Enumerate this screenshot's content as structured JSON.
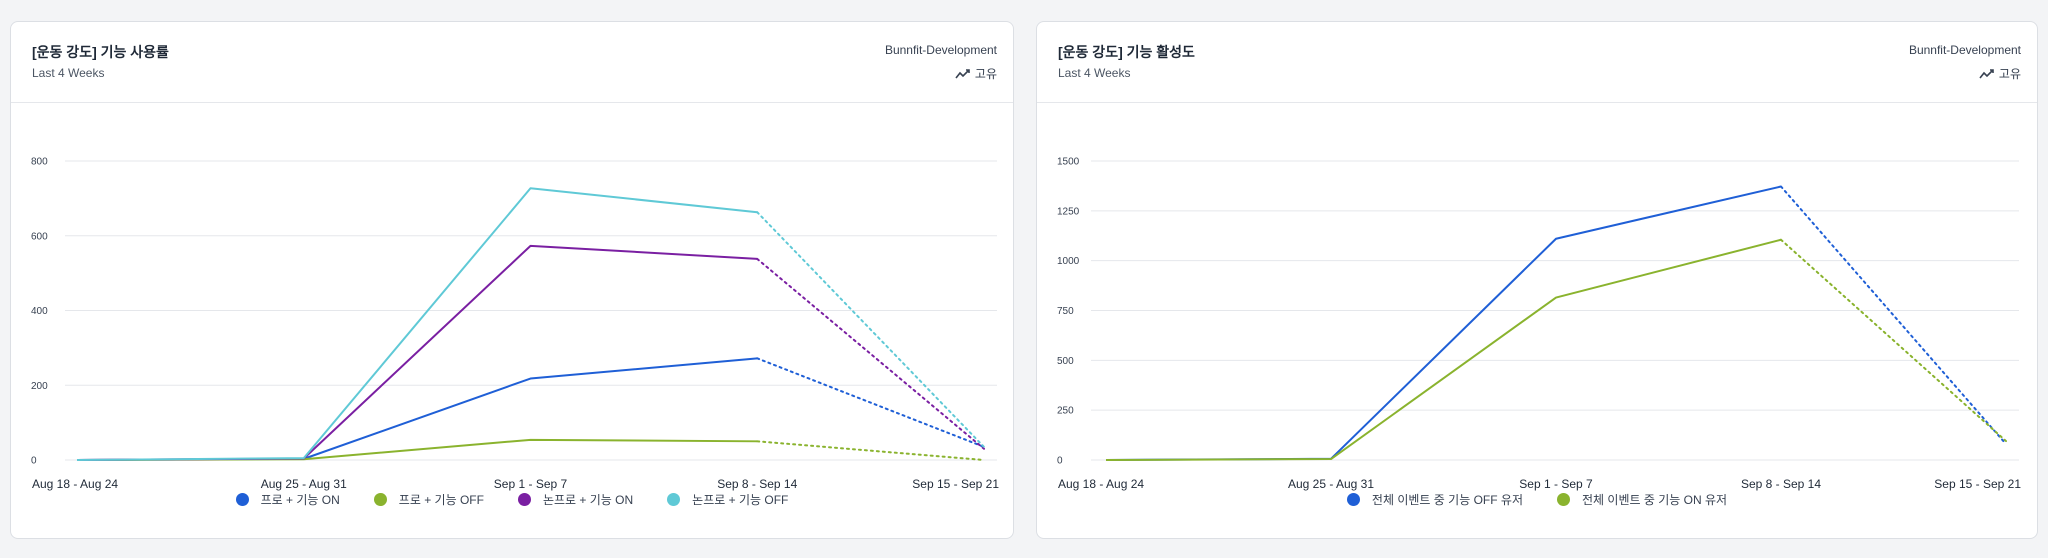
{
  "cards": [
    {
      "title": "[운동 강도] 기능 사용률",
      "subtitle": "Last 4 Weeks",
      "project": "Bunnfit-Development",
      "metric_label": "고유",
      "metric_icon": "trend-line-icon"
    },
    {
      "title": "[운동 강도] 기능 활성도",
      "subtitle": "Last 4 Weeks",
      "project": "Bunnfit-Development",
      "metric_label": "고유",
      "metric_icon": "trend-line-icon"
    }
  ],
  "chart_data": [
    {
      "type": "line",
      "categories": [
        "Aug 18 - Aug 24",
        "Aug 25 - Aug 31",
        "Sep 1 - Sep 7",
        "Sep 8 - Sep 14",
        "Sep 15 - Sep 21"
      ],
      "ylim": [
        0,
        800
      ],
      "yticks": [
        0,
        200,
        400,
        600,
        800
      ],
      "grid": true,
      "legend_position": "bottom",
      "incomplete_last_period": true,
      "series": [
        {
          "name": "프로 + 기능 ON",
          "color": "#1f5fd6",
          "values": [
            0,
            3,
            218,
            272,
            35
          ]
        },
        {
          "name": "프로 + 기능 OFF",
          "color": "#8ab32e",
          "values": [
            0,
            2,
            54,
            50,
            0
          ]
        },
        {
          "name": "논프로 + 기능 ON",
          "color": "#7a1fa2",
          "values": [
            0,
            4,
            573,
            538,
            30
          ]
        },
        {
          "name": "논프로 + 기능 OFF",
          "color": "#5fc9d6",
          "values": [
            0,
            5,
            727,
            663,
            35
          ]
        }
      ]
    },
    {
      "type": "line",
      "categories": [
        "Aug 18 - Aug 24",
        "Aug 25 - Aug 31",
        "Sep 1 - Sep 7",
        "Sep 8 - Sep 14",
        "Sep 15 - Sep 21"
      ],
      "ylim": [
        0,
        1500
      ],
      "yticks": [
        0,
        250,
        500,
        750,
        1000,
        1250,
        1500
      ],
      "grid": true,
      "legend_position": "bottom",
      "incomplete_last_period": true,
      "series": [
        {
          "name": "전체 이벤트 중 기능 OFF 유저",
          "color": "#1f5fd6",
          "values": [
            0,
            6,
            1110,
            1372,
            80
          ]
        },
        {
          "name": "전체 이벤트 중 기능 ON 유저",
          "color": "#8ab32e",
          "values": [
            0,
            5,
            815,
            1105,
            95
          ]
        }
      ]
    }
  ]
}
